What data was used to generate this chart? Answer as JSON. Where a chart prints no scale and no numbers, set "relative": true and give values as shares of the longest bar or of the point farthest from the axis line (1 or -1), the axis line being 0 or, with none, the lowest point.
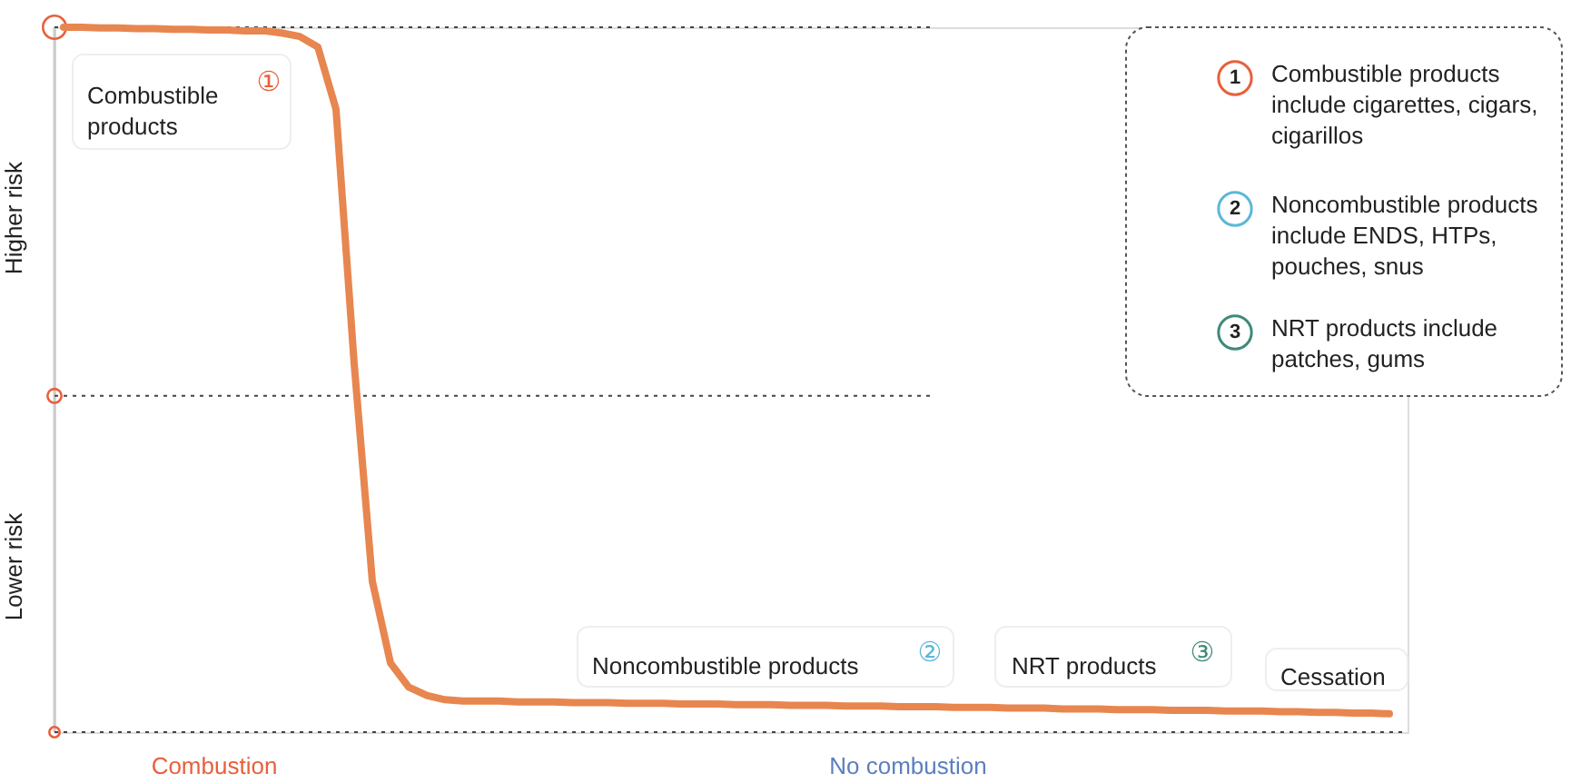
{
  "chart_data": {
    "type": "line",
    "relative": true,
    "categories": [
      null,
      null,
      null,
      null,
      null,
      null,
      null,
      null,
      null,
      null,
      null,
      null,
      null,
      null,
      null,
      null,
      null,
      null,
      null,
      null,
      null,
      null,
      null,
      null,
      null,
      null,
      null,
      null,
      null,
      null,
      null,
      null,
      null,
      null,
      null,
      null,
      null,
      null,
      null,
      null,
      null,
      null,
      null,
      null,
      null,
      null,
      null,
      null,
      null,
      null,
      null,
      null,
      null,
      null,
      null,
      null,
      null,
      null,
      null,
      null,
      null,
      null,
      null,
      null,
      null,
      null,
      null,
      null,
      null,
      null,
      null,
      null,
      null,
      null
    ],
    "series": [
      {
        "color": "#e8864f",
        "values": [
          1.0,
          1.0,
          0.999,
          0.999,
          0.998,
          0.998,
          0.997,
          0.997,
          0.996,
          0.996,
          0.995,
          0.995,
          0.992,
          0.987,
          0.972,
          0.884,
          0.523,
          0.214,
          0.098,
          0.064,
          0.052,
          0.046,
          0.044,
          0.044,
          0.044,
          0.043,
          0.043,
          0.043,
          0.042,
          0.042,
          0.042,
          0.041,
          0.041,
          0.041,
          0.04,
          0.04,
          0.04,
          0.039,
          0.039,
          0.039,
          0.038,
          0.038,
          0.038,
          0.037,
          0.037,
          0.037,
          0.036,
          0.036,
          0.036,
          0.035,
          0.035,
          0.035,
          0.034,
          0.034,
          0.034,
          0.033,
          0.033,
          0.033,
          0.032,
          0.032,
          0.032,
          0.031,
          0.031,
          0.031,
          0.03,
          0.03,
          0.03,
          0.029,
          0.029,
          0.028,
          0.028,
          0.027,
          0.027,
          0.026
        ]
      }
    ],
    "ref_lines": [
      {
        "axis": "y",
        "value": 1,
        "line_style": "dotted",
        "color": "#444444"
      },
      {
        "axis": "y",
        "value": 0.477,
        "line_style": "dotted",
        "color": "#444444"
      },
      {
        "axis": "y",
        "value": 0,
        "line_style": "dotted",
        "color": "#444444"
      }
    ],
    "annotations": [
      "Combustible products ①",
      "Noncombustible products ②",
      "NRT products ③",
      "Cessation",
      "Combustion",
      "No combustion",
      "Higher risk",
      "Lower risk",
      "1",
      "Combustible products include cigarettes, cigars, cigarillos",
      "2",
      "Noncombustible products include ENDS, HTPs, pouches, snus",
      "3",
      "NRT products include patches, gums"
    ]
  }
}
